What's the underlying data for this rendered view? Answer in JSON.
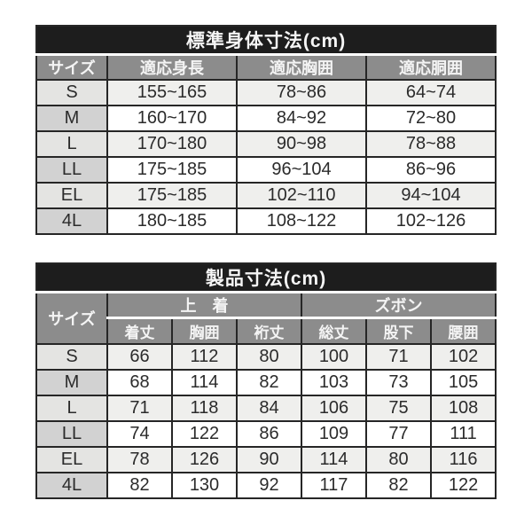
{
  "colors": {
    "title_bg": "#1d1d1d",
    "header_bg": "#8c8c8c",
    "header_text": "#f4f4f4",
    "row_odd_bg": "#efefed",
    "row_even_bg": "#ffffff",
    "size_cell_odd_bg": "#e4e4e2",
    "size_cell_even_bg": "#d2d2d2",
    "border": "#262626",
    "data_text": "#2b2b2b"
  },
  "chart_data": [
    {
      "type": "table",
      "title": "標準身体寸法(cm)",
      "columns": [
        "サイズ",
        "適応身長",
        "適応胸囲",
        "適応胴囲"
      ],
      "rows": [
        [
          "S",
          "155~165",
          "78~86",
          "64~74"
        ],
        [
          "M",
          "160~170",
          "84~92",
          "72~80"
        ],
        [
          "L",
          "170~180",
          "90~98",
          "78~88"
        ],
        [
          "LL",
          "175~185",
          "96~104",
          "86~96"
        ],
        [
          "EL",
          "175~185",
          "102~110",
          "94~104"
        ],
        [
          "4L",
          "180~185",
          "108~122",
          "102~126"
        ]
      ]
    },
    {
      "type": "table",
      "title": "製品寸法(cm)",
      "size_header": "サイズ",
      "groups": [
        {
          "label": "上　着",
          "columns": [
            "着丈",
            "胸囲",
            "裄丈"
          ]
        },
        {
          "label": "ズボン",
          "columns": [
            "総丈",
            "股下",
            "腰囲"
          ]
        }
      ],
      "rows": [
        [
          "S",
          "66",
          "112",
          "80",
          "100",
          "71",
          "102"
        ],
        [
          "M",
          "68",
          "114",
          "82",
          "103",
          "73",
          "105"
        ],
        [
          "L",
          "71",
          "118",
          "84",
          "106",
          "75",
          "108"
        ],
        [
          "LL",
          "74",
          "122",
          "86",
          "109",
          "77",
          "111"
        ],
        [
          "EL",
          "78",
          "126",
          "90",
          "114",
          "80",
          "116"
        ],
        [
          "4L",
          "82",
          "130",
          "92",
          "117",
          "82",
          "122"
        ]
      ]
    }
  ]
}
